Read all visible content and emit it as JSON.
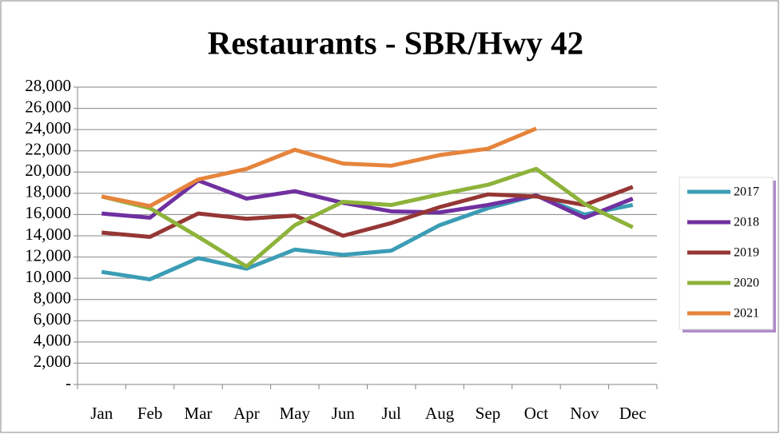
{
  "chart_data": {
    "type": "line",
    "title": "Restaurants - SBR/Hwy 42",
    "categories": [
      "Jan",
      "Feb",
      "Mar",
      "Apr",
      "May",
      "Jun",
      "Jul",
      "Aug",
      "Sep",
      "Oct",
      "Nov",
      "Dec"
    ],
    "series": [
      {
        "name": "2017",
        "color": "#3b9db5",
        "values": [
          10600,
          9900,
          11900,
          10900,
          12700,
          12200,
          12600,
          15000,
          16600,
          17800,
          16000,
          16900
        ]
      },
      {
        "name": "2018",
        "color": "#7030a0",
        "values": [
          16100,
          15700,
          19200,
          17500,
          18200,
          17100,
          16300,
          16200,
          16900,
          17800,
          15700,
          17500
        ]
      },
      {
        "name": "2019",
        "color": "#953735",
        "values": [
          14300,
          13900,
          16100,
          15600,
          15900,
          14000,
          15200,
          16700,
          17900,
          17700,
          16900,
          18600
        ]
      },
      {
        "name": "2020",
        "color": "#8db33a",
        "values": [
          17700,
          16600,
          13900,
          11100,
          15000,
          17200,
          16900,
          17900,
          18800,
          20300,
          17000,
          14800
        ]
      },
      {
        "name": "2021",
        "color": "#e6843c",
        "values": [
          17700,
          16800,
          19300,
          20300,
          22100,
          20800,
          20600,
          21600,
          22200,
          24100,
          null,
          null
        ]
      }
    ],
    "ylim": [
      0,
      28000
    ],
    "yticks": [
      {
        "value": 0,
        "label": "-"
      },
      {
        "value": 2000,
        "label": "2,000"
      },
      {
        "value": 4000,
        "label": "4,000"
      },
      {
        "value": 6000,
        "label": "6,000"
      },
      {
        "value": 8000,
        "label": "8,000"
      },
      {
        "value": 10000,
        "label": "10,000"
      },
      {
        "value": 12000,
        "label": "12,000"
      },
      {
        "value": 14000,
        "label": "14,000"
      },
      {
        "value": 16000,
        "label": "16,000"
      },
      {
        "value": 18000,
        "label": "18,000"
      },
      {
        "value": 20000,
        "label": "20,000"
      },
      {
        "value": 22000,
        "label": "22,000"
      },
      {
        "value": 24000,
        "label": "24,000"
      },
      {
        "value": 26000,
        "label": "26,000"
      },
      {
        "value": 28000,
        "label": "28,000"
      }
    ],
    "grid": true,
    "legend": "right"
  }
}
